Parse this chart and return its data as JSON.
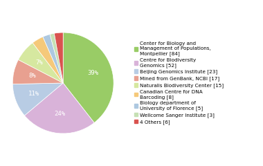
{
  "labels": [
    "Center for Biology and\nManagement of Populations,\nMontpellier [84]",
    "Centre for Biodiversity\nGenomics [52]",
    "Beijing Genomics Institute [23]",
    "Mined from GenBank, NCBI [17]",
    "Naturalis Biodiversity Center [15]",
    "Canadian Centre for DNA\nBarcoding [8]",
    "Biology department of\nUniversity of Florence [5]",
    "Wellcome Sanger Institute [3]",
    "4 Others [6]"
  ],
  "values": [
    84,
    52,
    23,
    17,
    15,
    8,
    5,
    3,
    6
  ],
  "colors": [
    "#99cc66",
    "#d9b3d9",
    "#b8cce4",
    "#e8a090",
    "#d6e8a0",
    "#f5c97a",
    "#adc8e0",
    "#c6e0b4",
    "#d9534f"
  ],
  "text_color": "#ffffff",
  "font_size": 6.5,
  "legend_fontsize": 5.2
}
